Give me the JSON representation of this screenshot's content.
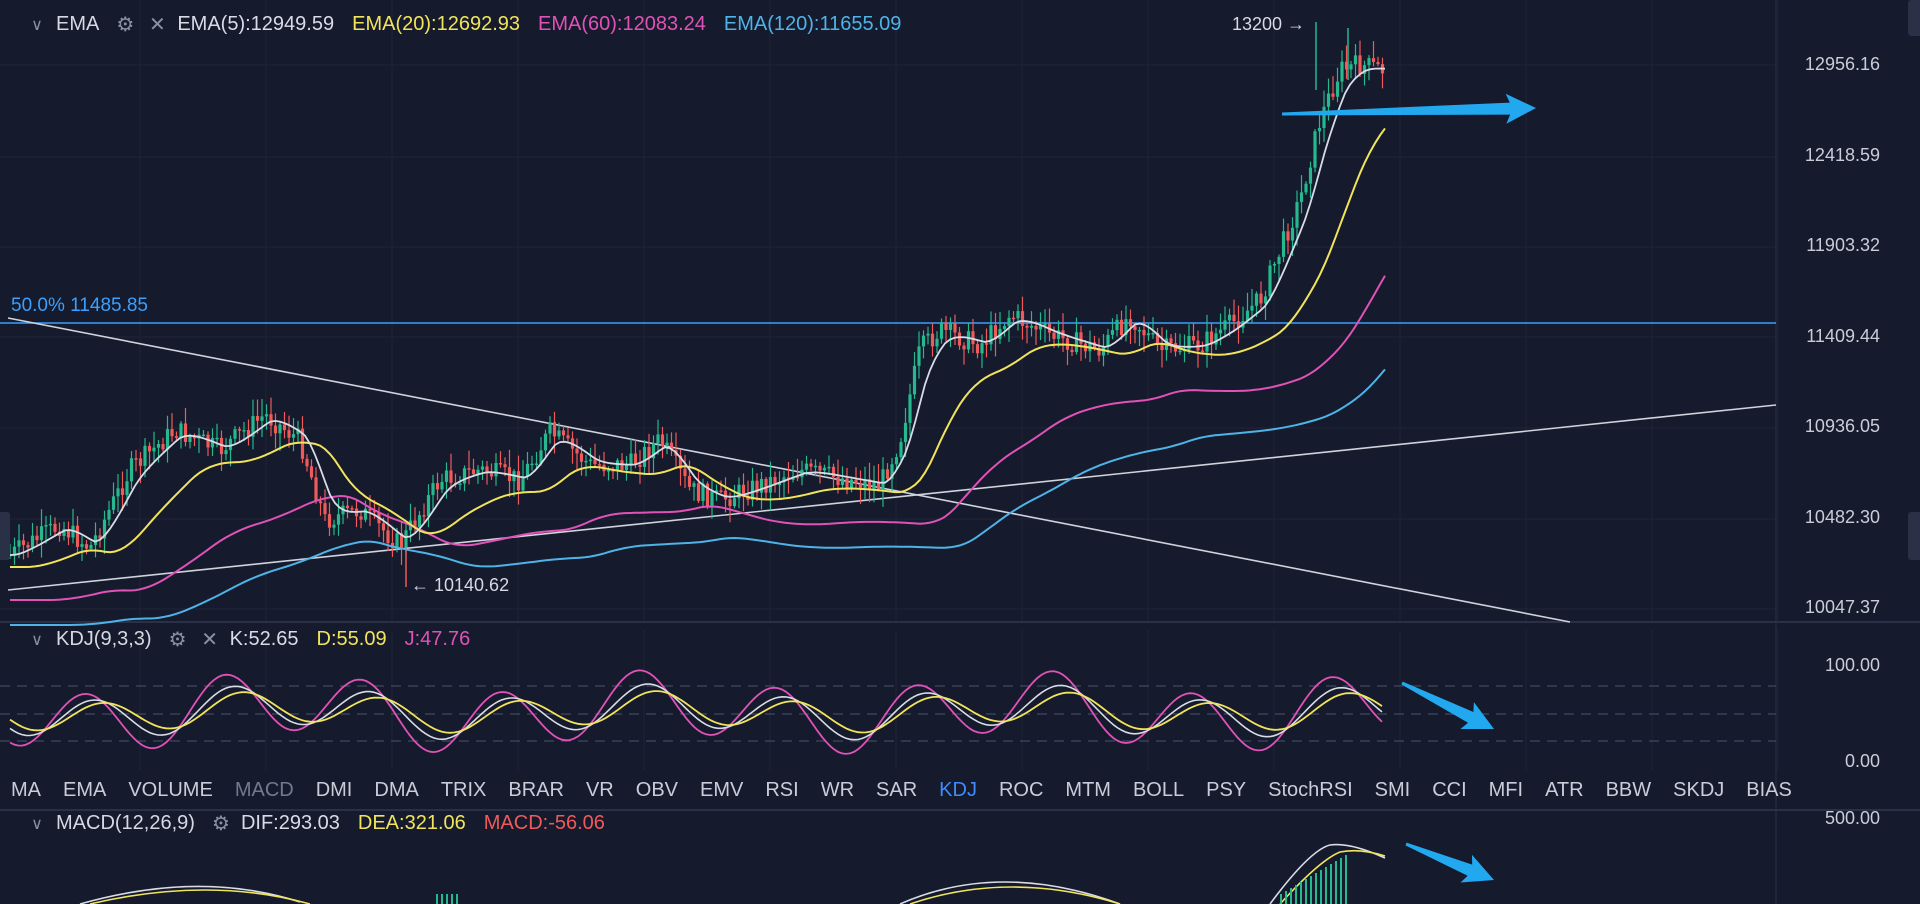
{
  "ema_panel": {
    "name": "EMA",
    "values": [
      {
        "label": "EMA(5):12949.59",
        "color": "#d8dce6"
      },
      {
        "label": "EMA(20):12692.93",
        "color": "#f2e45a"
      },
      {
        "label": "EMA(60):12083.24",
        "color": "#e052b8"
      },
      {
        "label": "EMA(120):11655.09",
        "color": "#4fb3e8"
      }
    ],
    "price_axis": [
      "12956.16",
      "12418.59",
      "11903.32",
      "11409.44",
      "10936.05",
      "10482.30",
      "10047.37"
    ],
    "high_marker": "13200 →",
    "low_marker": "← 10140.62",
    "fib_label": "50.0% 11485.85"
  },
  "kdj_panel": {
    "name": "KDJ(9,3,3)",
    "values": [
      {
        "label": "K:52.65",
        "color": "#d8dce6"
      },
      {
        "label": "D:55.09",
        "color": "#f2e45a"
      },
      {
        "label": "J:47.76",
        "color": "#e052b8"
      }
    ],
    "axis": [
      "100.00",
      "0.00"
    ]
  },
  "macd_panel": {
    "name": "MACD(12,26,9)",
    "values": [
      {
        "label": "DIF:293.03",
        "color": "#d8dce6"
      },
      {
        "label": "DEA:321.06",
        "color": "#f2e45a"
      },
      {
        "label": "MACD:-56.06",
        "color": "#ef5a5a"
      }
    ],
    "axis": [
      "500.00"
    ]
  },
  "indicator_tabs": [
    "MA",
    "EMA",
    "VOLUME",
    "MACD",
    "DMI",
    "DMA",
    "TRIX",
    "BRAR",
    "VR",
    "OBV",
    "EMV",
    "RSI",
    "WR",
    "SAR",
    "KDJ",
    "ROC",
    "MTM",
    "BOLL",
    "PSY",
    "StochRSI",
    "SMI",
    "CCI",
    "MFI",
    "ATR",
    "BBW",
    "SKDJ",
    "BIAS"
  ],
  "active_tab": "KDJ",
  "dimmed_tab": "MACD",
  "colors": {
    "background": "#151a2c",
    "up": "#26b88e",
    "down": "#ef5a5a",
    "annotation_arrow": "#22a8ef",
    "fib_line": "#3aa0ff"
  }
}
